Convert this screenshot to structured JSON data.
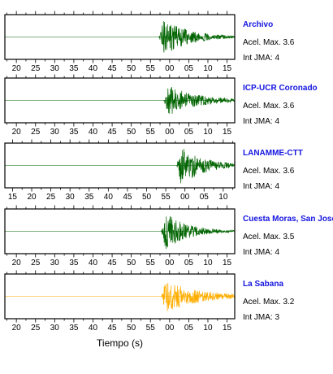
{
  "chart_data": {
    "type": "line",
    "xlabel": "Tiempo (s)",
    "panels": [
      {
        "station": "Archivo",
        "accel_label": "Acel. Max. 3.6",
        "intensity_label": "Int JMA: 4",
        "color": "#006400",
        "tick_labels": [
          "20",
          "25",
          "30",
          "35",
          "40",
          "45",
          "50",
          "55",
          "00",
          "05",
          "10",
          "15"
        ],
        "x_start": 17,
        "onset": 57.2,
        "peak_amplitude": 0.85,
        "decay_s": 7
      },
      {
        "station": "ICP-UCR Coronado",
        "accel_label": "Acel. Max. 3.6",
        "intensity_label": "Int JMA: 4",
        "color": "#006400",
        "tick_labels": [
          "20",
          "25",
          "30",
          "35",
          "40",
          "45",
          "50",
          "55",
          "00",
          "05",
          "10",
          "15"
        ],
        "x_start": 17,
        "onset": 58.5,
        "peak_amplitude": 0.7,
        "decay_s": 8
      },
      {
        "station": "LANAMME-CTT",
        "accel_label": "Acel. Max. 3.6",
        "intensity_label": "Int JMA: 4",
        "color": "#006400",
        "tick_labels": [
          "15",
          "20",
          "25",
          "30",
          "35",
          "40",
          "45",
          "50",
          "55",
          "00",
          "05",
          "10"
        ],
        "x_start": 13,
        "onset": 57.8,
        "peak_amplitude": 0.95,
        "decay_s": 6
      },
      {
        "station": "Cuesta Moras, San Jose",
        "accel_label": "Acel. Max. 3.5",
        "intensity_label": "Int JMA: 4",
        "color": "#006400",
        "tick_labels": [
          "20",
          "25",
          "30",
          "35",
          "40",
          "45",
          "50",
          "55",
          "00",
          "05",
          "10",
          "15"
        ],
        "x_start": 17,
        "onset": 57.8,
        "peak_amplitude": 0.85,
        "decay_s": 6
      },
      {
        "station": "La Sabana",
        "accel_label": "Acel. Max. 3.2",
        "intensity_label": "Int JMA: 3",
        "color": "#ffae00",
        "tick_labels": [
          "20",
          "25",
          "30",
          "35",
          "40",
          "45",
          "50",
          "55",
          "00",
          "05",
          "10",
          "15"
        ],
        "x_start": 17,
        "onset": 57.8,
        "peak_amplitude": 0.75,
        "decay_s": 9
      }
    ]
  }
}
